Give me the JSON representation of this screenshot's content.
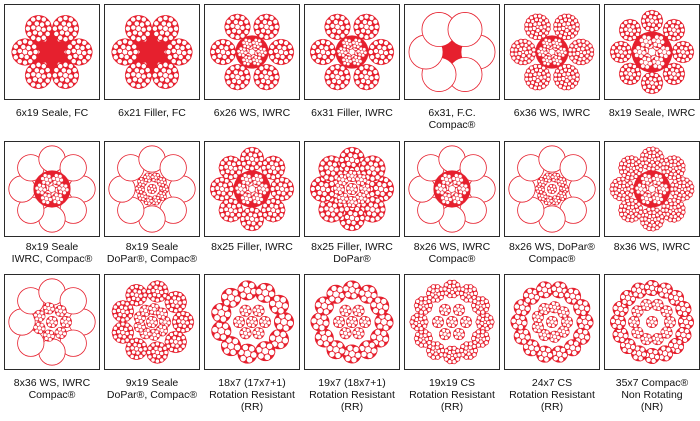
{
  "colors": {
    "red": "#e6202e",
    "frame": "#2a2a2a",
    "text": "#111111"
  },
  "rows": [
    {
      "items": [
        {
          "caption": [
            "6x19 Seale, FC"
          ],
          "icon": "6x19-seale-fc-cross-section"
        },
        {
          "caption": [
            "6x21 Filler, FC"
          ],
          "icon": "6x21-filler-fc-cross-section"
        },
        {
          "caption": [
            "6x26 WS, IWRC"
          ],
          "icon": "6x26-ws-iwrc-cross-section"
        },
        {
          "caption": [
            "6x31 Filler, IWRC"
          ],
          "icon": "6x31-filler-iwrc-cross-section"
        },
        {
          "caption": [
            "6x31, F.C.",
            "Compac®"
          ],
          "icon": "6x31-fc-compac-cross-section"
        },
        {
          "caption": [
            "6x36 WS, IWRC"
          ],
          "icon": "6x36-ws-iwrc-cross-section"
        },
        {
          "caption": [
            "8x19 Seale, IWRC"
          ],
          "icon": "8x19-seale-iwrc-cross-section"
        }
      ]
    },
    {
      "items": [
        {
          "caption": [
            "8x19 Seale",
            "IWRC, Compac®"
          ],
          "icon": "8x19-seale-iwrc-compac-cross-section"
        },
        {
          "caption": [
            "8x19 Seale",
            "DoPar®, Compac®"
          ],
          "icon": "8x19-seale-dopar-compac-cross-section"
        },
        {
          "caption": [
            "8x25 Filler, IWRC"
          ],
          "icon": "8x25-filler-iwrc-cross-section"
        },
        {
          "caption": [
            "8x25 Filler, IWRC",
            "DoPar®"
          ],
          "icon": "8x25-filler-iwrc-dopar-cross-section"
        },
        {
          "caption": [
            "8x26 WS, IWRC",
            "Compac®"
          ],
          "icon": "8x26-ws-iwrc-compac-cross-section"
        },
        {
          "caption": [
            "8x26 WS, DoPar®",
            "Compac®"
          ],
          "icon": "8x26-ws-dopar-compac-cross-section"
        },
        {
          "caption": [
            "8x36 WS, IWRC"
          ],
          "icon": "8x36-ws-iwrc-cross-section"
        }
      ]
    },
    {
      "items": [
        {
          "caption": [
            "8x36 WS, IWRC",
            "Compac®"
          ],
          "icon": "8x36-ws-iwrc-compac-cross-section"
        },
        {
          "caption": [
            "9x19 Seale",
            "DoPar®, Compac®"
          ],
          "icon": "9x19-seale-dopar-compac-cross-section"
        },
        {
          "caption": [
            "18x7 (17x7+1)",
            "Rotation Resistant",
            "(RR)"
          ],
          "icon": "18x7-rotation-resistant-cross-section"
        },
        {
          "caption": [
            "19x7 (18x7+1)",
            "Rotation Resistant",
            "(RR)"
          ],
          "icon": "19x7-rotation-resistant-cross-section"
        },
        {
          "caption": [
            "19x19 CS",
            "Rotation Resistant",
            "(RR)"
          ],
          "icon": "19x19-cs-rotation-resistant-cross-section"
        },
        {
          "caption": [
            "24x7 CS",
            "Rotation Resistant",
            "(RR)"
          ],
          "icon": "24x7-cs-rotation-resistant-cross-section"
        },
        {
          "caption": [
            "35x7 Compac®",
            "Non Rotating",
            "(NR)"
          ],
          "icon": "35x7-compac-non-rotating-cross-section"
        }
      ]
    }
  ]
}
